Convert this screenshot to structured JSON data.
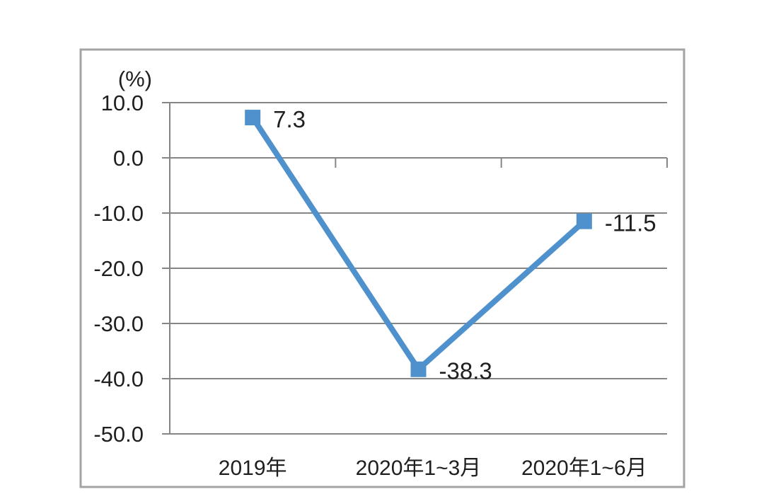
{
  "chart": {
    "line_color": "#4f91cd",
    "grid_color": "#868686",
    "frame_color": "#a3a3a3",
    "text_color": "#1f1f1f",
    "background_color": "#ffffff"
  },
  "chart_data": {
    "type": "line",
    "title": "",
    "ylabel": "(%)",
    "xlabel": "",
    "categories": [
      "2019年",
      "2020年1~3月",
      "2020年1~6月"
    ],
    "values": [
      7.3,
      -38.3,
      -11.5
    ],
    "data_labels": [
      "7.3",
      "-38.3",
      "-11.5"
    ],
    "y_ticks": [
      "10.0",
      "0.0",
      "-10.0",
      "-20.0",
      "-30.0",
      "-40.0",
      "-50.0"
    ],
    "y_tick_values": [
      10,
      0,
      -10,
      -20,
      -30,
      -40,
      -50
    ],
    "ylim": [
      -50,
      10
    ],
    "grid": true,
    "legend": false,
    "marker": "square",
    "category_axis_cross": 0
  }
}
